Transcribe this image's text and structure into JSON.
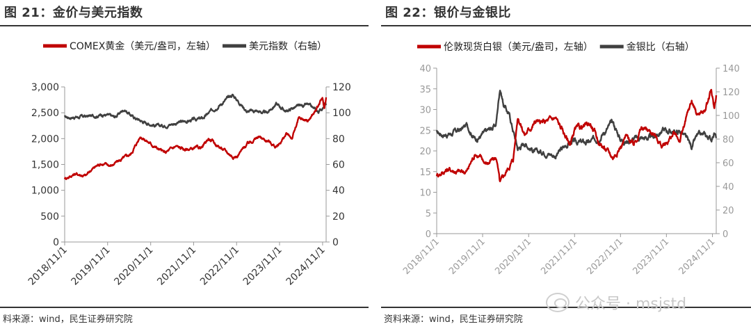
{
  "left": {
    "title": "图 21：金价与美元指数",
    "source": "料来源：wind，民生证券研究院",
    "chart_data": {
      "type": "line",
      "title": "图 21：金价与美元指数",
      "xlabel": "",
      "ylabel": "",
      "x_range": [
        "2018-11-01",
        "2024-12-01"
      ],
      "x_ticks": [
        "2018/11/1",
        "2019/11/1",
        "2020/11/1",
        "2021/11/1",
        "2022/11/1",
        "2023/11/1",
        "2024/11/1"
      ],
      "y_left": {
        "min": 0,
        "max": 3000,
        "ticks": [
          "0",
          "500",
          "1,000",
          "1,500",
          "2,000",
          "2,500",
          "3,000"
        ]
      },
      "y_right": {
        "min": 0,
        "max": 120,
        "ticks": [
          "0",
          "20",
          "40",
          "60",
          "80",
          "100",
          "120"
        ]
      },
      "legend_position": "top-right",
      "series": [
        {
          "name": "COMEX黄金（美元/盎司，左轴）",
          "color": "#c00000",
          "axis": "left",
          "x": [
            "2018-11-01",
            "2019-02-01",
            "2019-05-01",
            "2019-06-15",
            "2019-09-01",
            "2019-12-01",
            "2020-03-01",
            "2020-05-15",
            "2020-08-07",
            "2020-11-01",
            "2021-03-01",
            "2021-06-01",
            "2021-08-15",
            "2021-11-01",
            "2022-01-15",
            "2022-03-08",
            "2022-06-01",
            "2022-09-28",
            "2022-11-01",
            "2023-02-01",
            "2023-05-04",
            "2023-08-01",
            "2023-10-06",
            "2023-12-28",
            "2024-02-15",
            "2024-04-12",
            "2024-07-01",
            "2024-09-01",
            "2024-10-30",
            "2024-11-15",
            "2024-12-01"
          ],
          "values": [
            1230,
            1320,
            1280,
            1400,
            1520,
            1480,
            1600,
            1700,
            2050,
            1900,
            1720,
            1850,
            1790,
            1800,
            1830,
            2000,
            1850,
            1660,
            1650,
            1900,
            2030,
            1950,
            1830,
            2080,
            2010,
            2380,
            2350,
            2530,
            2780,
            2570,
            2800
          ]
        },
        {
          "name": "美元指数（右轴）",
          "color": "#404040",
          "axis": "right",
          "x": [
            "2018-11-01",
            "2019-03-01",
            "2019-07-01",
            "2019-10-01",
            "2020-01-01",
            "2020-03-20",
            "2020-06-01",
            "2020-09-01",
            "2021-01-06",
            "2021-06-01",
            "2021-11-01",
            "2022-01-15",
            "2022-05-13",
            "2022-07-14",
            "2022-09-28",
            "2022-11-01",
            "2023-01-31",
            "2023-04-15",
            "2023-07-14",
            "2023-10-03",
            "2023-12-28",
            "2024-03-01",
            "2024-06-26",
            "2024-09-27",
            "2024-11-01",
            "2024-11-22",
            "2024-12-01"
          ],
          "values": [
            96.5,
            96.8,
            97.5,
            98.8,
            96.5,
            102.8,
            97.0,
            93.0,
            89.5,
            92.0,
            94.5,
            95.5,
            104.5,
            108.5,
            114.0,
            110.5,
            101.0,
            101.5,
            99.5,
            107.0,
            101.0,
            104.0,
            106.0,
            100.5,
            104.0,
            107.5,
            106.0
          ]
        }
      ]
    }
  },
  "right": {
    "title": "图 22：银价与金银比",
    "source": "资料来源：wind，民生证券研究院",
    "chart_data": {
      "type": "line",
      "title": "图 22：银价与金银比",
      "xlabel": "",
      "ylabel": "",
      "x_range": [
        "2018-11-01",
        "2024-12-01"
      ],
      "x_ticks": [
        "2018/11/1",
        "2019/11/1",
        "2020/11/1",
        "2021/11/1",
        "2022/11/1",
        "2023/11/1",
        "2024/11/1"
      ],
      "y_left": {
        "min": 0,
        "max": 40,
        "ticks": [
          "0",
          "5",
          "10",
          "15",
          "20",
          "25",
          "30",
          "35",
          "40"
        ]
      },
      "y_right": {
        "min": 0,
        "max": 140,
        "ticks": [
          "0",
          "20",
          "40",
          "60",
          "80",
          "100",
          "120",
          "140"
        ]
      },
      "legend_position": "top-right",
      "series": [
        {
          "name": "伦敦现货白银（美元/盎司，左轴）",
          "color": "#c00000",
          "axis": "left",
          "x": [
            "2018-11-01",
            "2019-02-01",
            "2019-05-15",
            "2019-07-01",
            "2019-09-04",
            "2019-12-01",
            "2020-02-20",
            "2020-03-18",
            "2020-05-15",
            "2020-07-01",
            "2020-08-07",
            "2020-10-01",
            "2021-01-06",
            "2021-02-01",
            "2021-06-01",
            "2021-09-29",
            "2021-11-01",
            "2022-03-08",
            "2022-05-15",
            "2022-09-01",
            "2022-11-01",
            "2022-12-15",
            "2023-02-15",
            "2023-04-15",
            "2023-07-15",
            "2023-10-03",
            "2023-12-28",
            "2024-02-15",
            "2024-05-20",
            "2024-07-01",
            "2024-09-01",
            "2024-10-22",
            "2024-11-15",
            "2024-12-01"
          ],
          "values": [
            14.2,
            15.6,
            14.8,
            15.2,
            19.5,
            17.0,
            18.2,
            12.0,
            15.5,
            18.0,
            28.5,
            24.0,
            27.5,
            26.5,
            28.0,
            21.5,
            25.0,
            26.5,
            22.0,
            18.5,
            21.0,
            23.5,
            21.5,
            25.5,
            24.5,
            21.0,
            24.0,
            22.5,
            32.0,
            29.0,
            29.5,
            34.5,
            30.0,
            33.5
          ]
        },
        {
          "name": "金银比（右轴）",
          "color": "#404040",
          "axis": "right",
          "x": [
            "2018-11-01",
            "2019-02-01",
            "2019-05-15",
            "2019-07-01",
            "2019-09-04",
            "2019-12-01",
            "2020-02-15",
            "2020-03-18",
            "2020-04-15",
            "2020-06-01",
            "2020-08-07",
            "2020-10-01",
            "2021-01-06",
            "2021-03-01",
            "2021-06-01",
            "2021-09-29",
            "2021-11-01",
            "2022-03-01",
            "2022-05-15",
            "2022-09-01",
            "2022-11-01",
            "2022-12-15",
            "2023-02-01",
            "2023-04-15",
            "2023-07-15",
            "2023-10-03",
            "2023-12-28",
            "2024-03-01",
            "2024-05-20",
            "2024-07-01",
            "2024-09-01",
            "2024-10-22",
            "2024-11-15",
            "2024-12-01"
          ],
          "values": [
            85,
            84,
            88,
            92,
            80,
            86,
            92,
            124,
            110,
            100,
            72,
            77,
            68,
            70,
            66,
            78,
            77,
            77,
            82,
            94,
            80,
            78,
            80,
            81,
            81,
            88,
            86,
            86,
            73,
            82,
            83,
            80,
            86,
            81
          ]
        }
      ]
    }
  }
}
